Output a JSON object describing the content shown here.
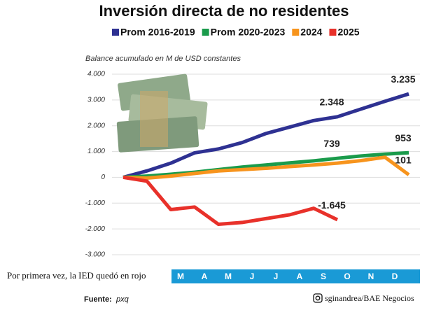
{
  "chart_data": {
    "type": "line",
    "title": "Inversión directa de no residentes",
    "subtitle": "Balance acumulado en M de USD constantes",
    "annotation": "Por primera vez, la IED quedó en rojo",
    "source_label": "Fuente:",
    "source": "pxq",
    "credit": "sginandrea/BAE Negocios",
    "categories": [
      null,
      null,
      null,
      "M",
      "A",
      "M",
      "J",
      "J",
      "A",
      "S",
      "O",
      "N",
      "D"
    ],
    "ylim": [
      -3000,
      4000
    ],
    "yticks": [
      {
        "value": 4000,
        "label": "4.000"
      },
      {
        "value": 3000,
        "label": "3.000"
      },
      {
        "value": 2000,
        "label": "2.000"
      },
      {
        "value": 1000,
        "label": "1.000"
      },
      0,
      {
        "value": -1000,
        "label": "-1.000"
      },
      {
        "value": -2000,
        "label": "-2.000"
      },
      {
        "value": -3000,
        "label": "-3.000"
      }
    ],
    "grid": true,
    "legend": "top",
    "series": [
      {
        "name": "Prom 2016-2019",
        "color": "#2e3192",
        "values": [
          0,
          250,
          550,
          950,
          1100,
          1350,
          1700,
          1950,
          2200,
          2348,
          2650,
          2950,
          3235
        ],
        "value_labels": [
          null,
          null,
          null,
          null,
          null,
          null,
          null,
          null,
          null,
          "2.348",
          null,
          null,
          "3.235"
        ]
      },
      {
        "name": "Prom 2020-2023",
        "color": "#1a9b4b",
        "values": [
          0,
          50,
          120,
          200,
          300,
          400,
          480,
          560,
          640,
          739,
          830,
          900,
          953
        ],
        "value_labels": [
          null,
          null,
          null,
          null,
          null,
          null,
          null,
          null,
          null,
          "739",
          null,
          null,
          "953"
        ]
      },
      {
        "name": "2024",
        "color": "#f7941d",
        "values": [
          0,
          -30,
          50,
          150,
          250,
          300,
          350,
          420,
          480,
          550,
          650,
          780,
          101
        ],
        "value_labels": [
          null,
          null,
          null,
          null,
          null,
          null,
          null,
          null,
          null,
          null,
          null,
          null,
          "101"
        ]
      },
      {
        "name": "2025",
        "color": "#e8312a",
        "values": [
          0,
          -150,
          -1250,
          -1150,
          -1820,
          -1750,
          -1600,
          -1450,
          -1200,
          -1645,
          null,
          null,
          null
        ],
        "value_labels": [
          null,
          null,
          null,
          null,
          null,
          null,
          null,
          null,
          null,
          "-1.645",
          null,
          null,
          null
        ]
      }
    ]
  }
}
